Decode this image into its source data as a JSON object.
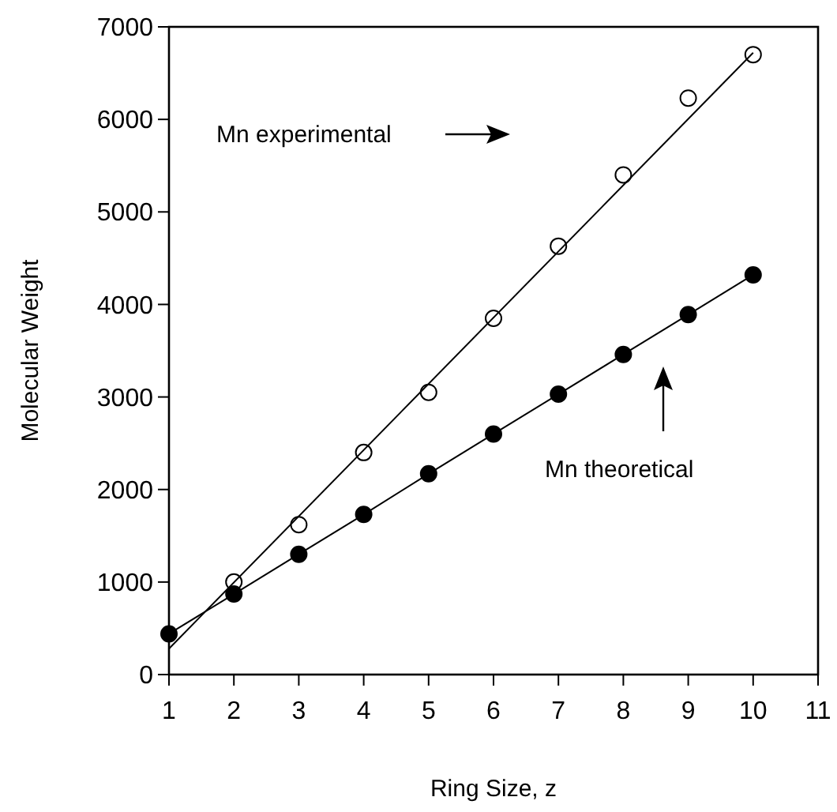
{
  "chart_data": {
    "type": "scatter",
    "xlabel": "Ring Size, z",
    "ylabel": "Molecular Weight",
    "x": [
      1,
      2,
      3,
      4,
      5,
      6,
      7,
      8,
      9,
      10
    ],
    "series": [
      {
        "name": "Mn experimental",
        "color": "#000000",
        "marker": "circle",
        "values": [
          null,
          1000,
          1620,
          2400,
          3050,
          3850,
          4630,
          5400,
          6230,
          6700
        ]
      },
      {
        "type": "line",
        "color": "#000000",
        "marker": "none",
        "x": [
          1,
          10
        ],
        "values": [
          280,
          6720
        ]
      },
      {
        "name": "Mn theoretical",
        "type": "line",
        "color": "#000000",
        "marker": "circle",
        "values": [
          440,
          870,
          1300,
          1730,
          2170,
          2600,
          3030,
          3460,
          3890,
          4320
        ]
      }
    ],
    "xlim": [
      1,
      11
    ],
    "xticks": [
      1,
      2,
      3,
      4,
      5,
      6,
      7,
      8,
      9,
      10,
      11
    ],
    "ylim": [
      0,
      7000
    ],
    "yticks": [
      0,
      1000,
      2000,
      3000,
      4000,
      5000,
      6000,
      7000
    ],
    "grid": false,
    "legend": "top left"
  }
}
